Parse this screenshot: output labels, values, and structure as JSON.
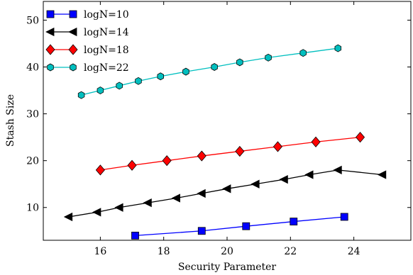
{
  "chart_data": {
    "type": "line",
    "title": "",
    "xlabel": "Security Parameter",
    "ylabel": "Stash Size",
    "xlim": [
      14.2,
      25.8
    ],
    "ylim": [
      3,
      54
    ],
    "x_ticks": [
      16,
      18,
      20,
      22,
      24
    ],
    "y_ticks": [
      10,
      20,
      30,
      40,
      50
    ],
    "grid": false,
    "legend_position": "top-left",
    "series": [
      {
        "name": "logN=10",
        "color": "#0000ff",
        "marker": "square",
        "x": [
          17.1,
          19.2,
          20.6,
          22.1,
          23.7
        ],
        "y": [
          4,
          5,
          6,
          7,
          8
        ]
      },
      {
        "name": "logN=14",
        "color": "#000000",
        "marker": "triangle-left",
        "x": [
          15.0,
          15.9,
          16.6,
          17.5,
          18.4,
          19.2,
          20.0,
          20.9,
          21.8,
          22.6,
          23.5,
          24.9
        ],
        "y": [
          8,
          9,
          10,
          11,
          12,
          13,
          14,
          15,
          16,
          17,
          18,
          17
        ]
      },
      {
        "name": "logN=18",
        "color": "#ff0000",
        "marker": "diamond",
        "x": [
          16.0,
          17.0,
          18.1,
          19.2,
          20.4,
          21.6,
          22.8,
          24.2
        ],
        "y": [
          18,
          19,
          20,
          21,
          22,
          23,
          24,
          25
        ]
      },
      {
        "name": "logN=22",
        "color": "#00bfbf",
        "marker": "hexagon",
        "x": [
          15.4,
          16.0,
          16.6,
          17.2,
          17.9,
          18.7,
          19.6,
          20.4,
          21.3,
          22.4,
          23.5
        ],
        "y": [
          34,
          35,
          36,
          37,
          38,
          39,
          40,
          41,
          42,
          43,
          44
        ]
      }
    ]
  }
}
